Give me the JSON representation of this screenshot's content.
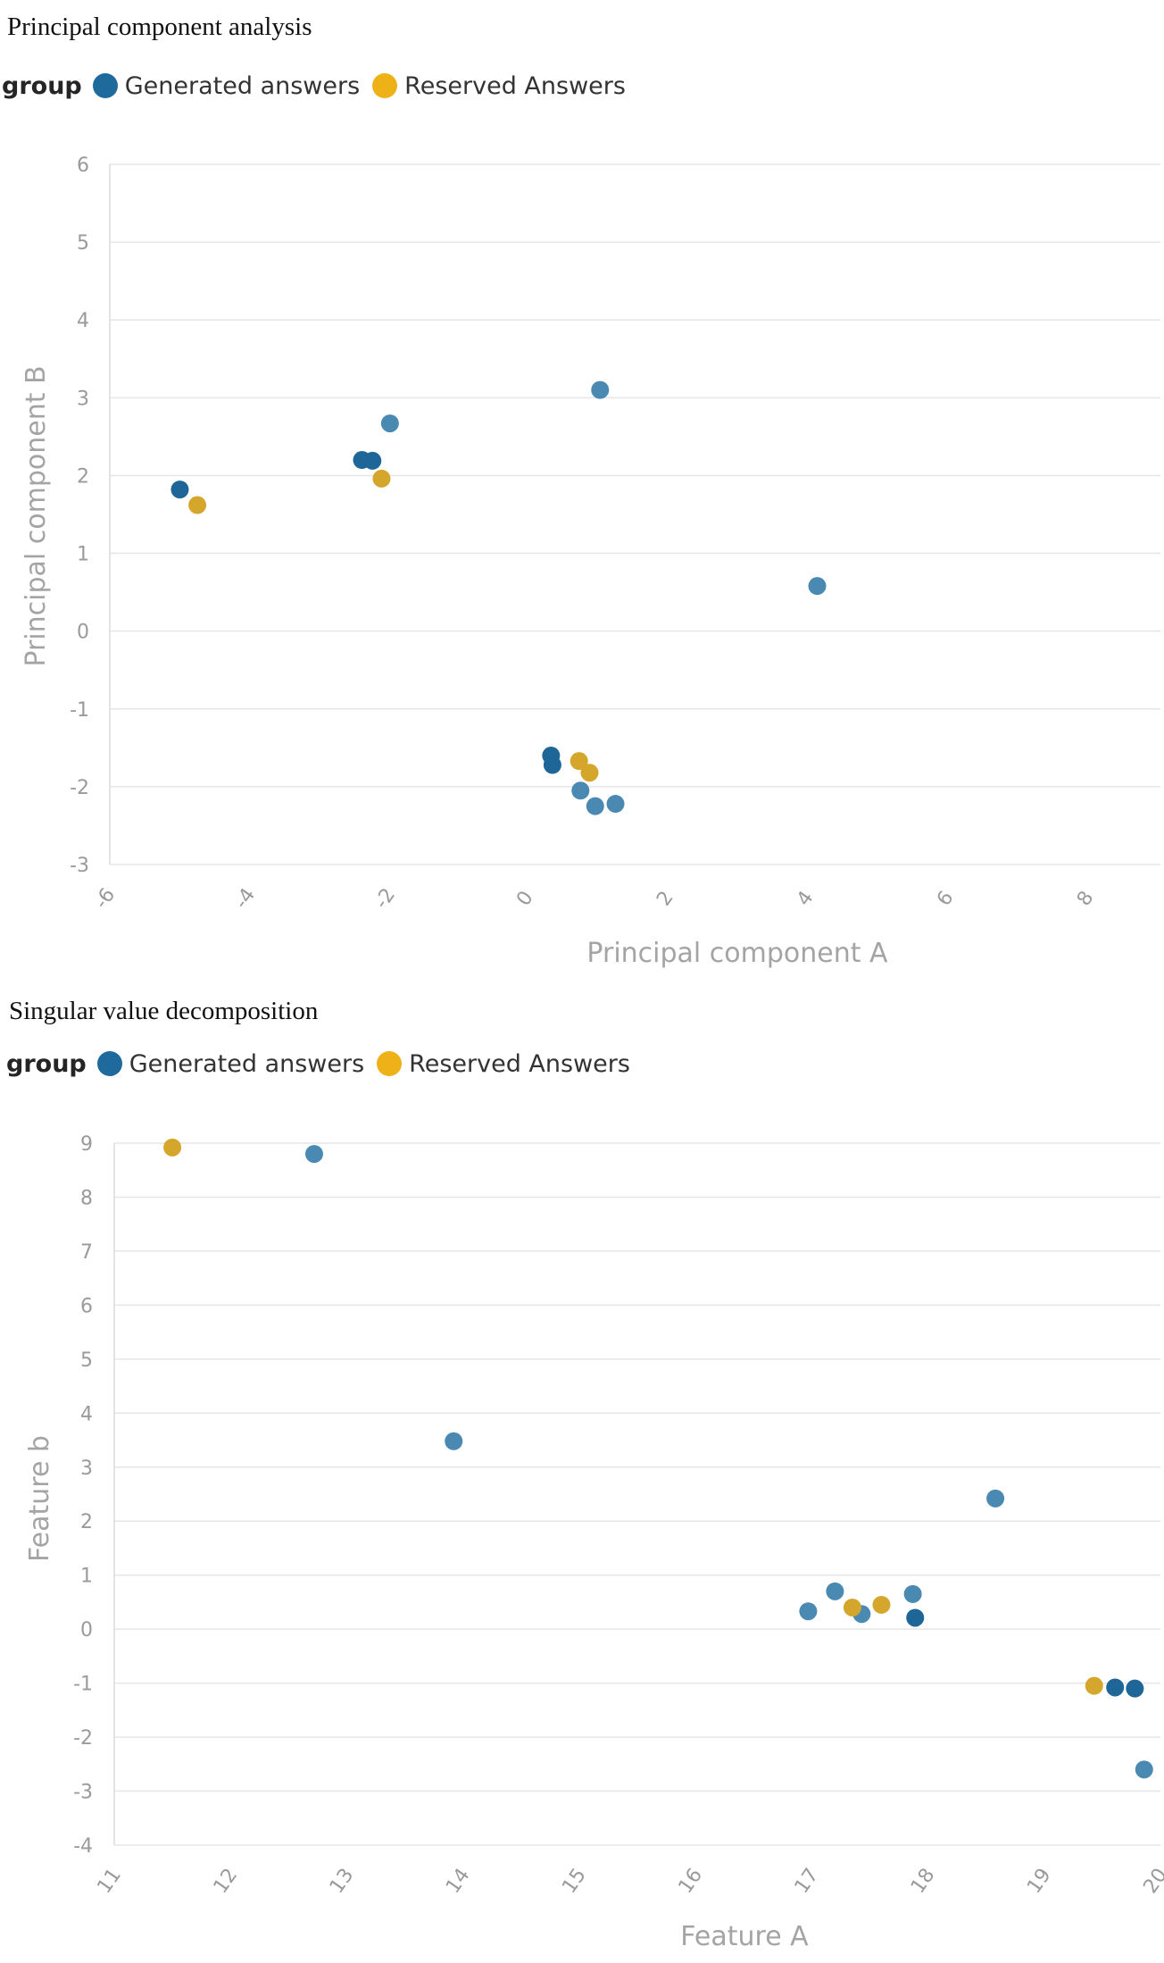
{
  "colors": {
    "generated": "#4a8ab2",
    "generated_dark": "#1e6697",
    "reserved": "#d4a72c",
    "legend_generated": "#1f6a9c",
    "legend_reserved": "#eeb118"
  },
  "legend": {
    "title": "group",
    "items": [
      {
        "label": "Generated answers",
        "color_key": "legend_generated"
      },
      {
        "label": "Reserved Answers",
        "color_key": "legend_reserved"
      }
    ]
  },
  "chart_data": [
    {
      "type": "scatter",
      "title": "Principal component analysis",
      "xlabel": "Principal component A",
      "ylabel": "Principal component B",
      "xlim": [
        -6,
        9
      ],
      "ylim": [
        -3,
        6
      ],
      "x_ticks": [
        -6,
        -4,
        -2,
        0,
        2,
        4,
        6,
        8
      ],
      "y_ticks": [
        -3,
        -2,
        -1,
        0,
        1,
        2,
        3,
        4,
        5,
        6
      ],
      "grid": true,
      "legend_position": "top-left",
      "series": [
        {
          "name": "Generated answers",
          "points": [
            {
              "x": -5.0,
              "y": 1.82,
              "shade": "dark"
            },
            {
              "x": -2.4,
              "y": 2.2,
              "shade": "dark"
            },
            {
              "x": -2.25,
              "y": 2.19,
              "shade": "dark"
            },
            {
              "x": -2.0,
              "y": 2.67,
              "shade": "light"
            },
            {
              "x": 1.0,
              "y": 3.1,
              "shade": "light"
            },
            {
              "x": 4.1,
              "y": 0.58,
              "shade": "light"
            },
            {
              "x": 0.3,
              "y": -1.6,
              "shade": "dark"
            },
            {
              "x": 0.32,
              "y": -1.72,
              "shade": "dark"
            },
            {
              "x": 0.72,
              "y": -2.05,
              "shade": "light"
            },
            {
              "x": 0.93,
              "y": -2.25,
              "shade": "light"
            },
            {
              "x": 1.22,
              "y": -2.22,
              "shade": "light"
            }
          ]
        },
        {
          "name": "Reserved Answers",
          "points": [
            {
              "x": -4.75,
              "y": 1.62
            },
            {
              "x": -2.12,
              "y": 1.96
            },
            {
              "x": 0.7,
              "y": -1.67
            },
            {
              "x": 0.85,
              "y": -1.82
            }
          ]
        }
      ]
    },
    {
      "type": "scatter",
      "title": "Singular value decomposition",
      "xlabel": "Feature A",
      "ylabel": "Feature b",
      "xlim": [
        11,
        20
      ],
      "ylim": [
        -4,
        9
      ],
      "x_ticks": [
        11,
        12,
        13,
        14,
        15,
        16,
        17,
        18,
        19,
        20
      ],
      "y_ticks": [
        -4,
        -3,
        -2,
        -1,
        0,
        1,
        2,
        3,
        4,
        5,
        6,
        7,
        8,
        9
      ],
      "grid": true,
      "legend_position": "top-left",
      "series": [
        {
          "name": "Generated answers",
          "points": [
            {
              "x": 12.72,
              "y": 8.8,
              "shade": "light"
            },
            {
              "x": 13.92,
              "y": 3.48,
              "shade": "light"
            },
            {
              "x": 18.58,
              "y": 2.42,
              "shade": "light"
            },
            {
              "x": 16.97,
              "y": 0.33,
              "shade": "light"
            },
            {
              "x": 17.2,
              "y": 0.7,
              "shade": "light"
            },
            {
              "x": 17.43,
              "y": 0.28,
              "shade": "light"
            },
            {
              "x": 17.87,
              "y": 0.65,
              "shade": "light"
            },
            {
              "x": 17.89,
              "y": 0.21,
              "shade": "dark"
            },
            {
              "x": 19.61,
              "y": -1.08,
              "shade": "dark"
            },
            {
              "x": 19.78,
              "y": -1.1,
              "shade": "dark"
            },
            {
              "x": 19.86,
              "y": -2.6,
              "shade": "light"
            }
          ]
        },
        {
          "name": "Reserved Answers",
          "points": [
            {
              "x": 11.5,
              "y": 8.92
            },
            {
              "x": 17.35,
              "y": 0.4
            },
            {
              "x": 17.6,
              "y": 0.45
            },
            {
              "x": 19.43,
              "y": -1.05
            }
          ]
        }
      ]
    }
  ]
}
